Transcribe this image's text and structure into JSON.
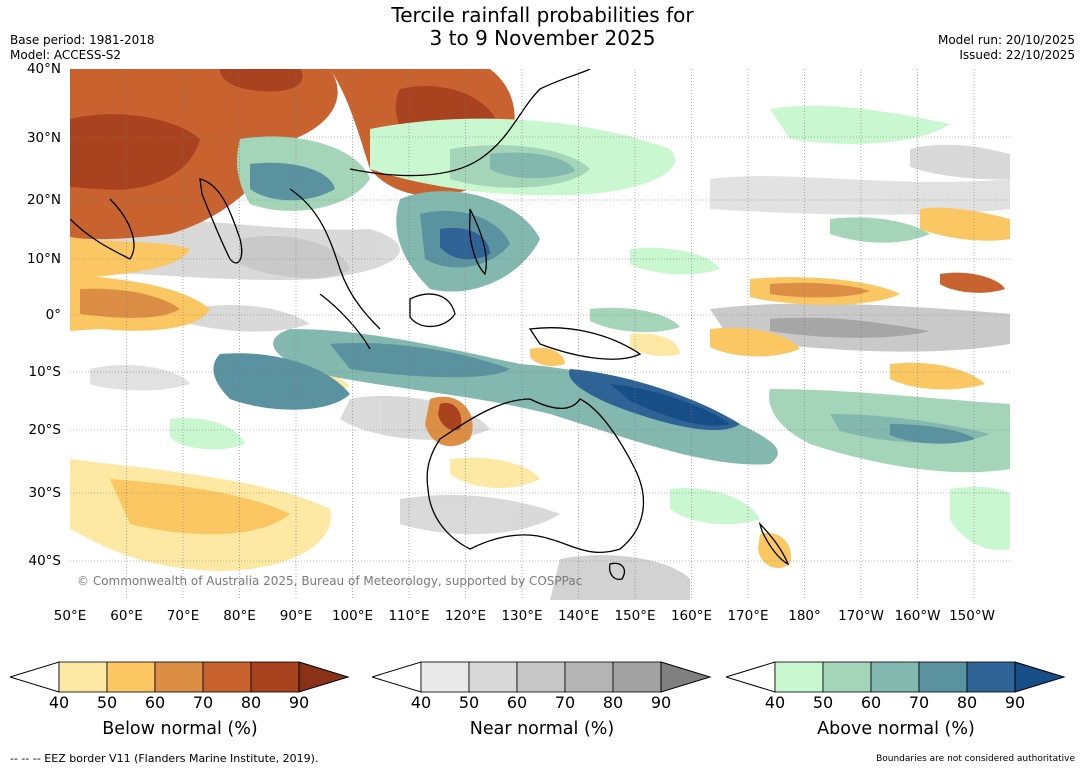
{
  "title": {
    "line1": "Tercile rainfall probabilities for",
    "line2": "3 to 9 November 2025"
  },
  "meta": {
    "base_period": "Base period: 1981-2018",
    "model": "Model: ACCESS-S2",
    "model_run": "Model run: 20/10/2025",
    "issued": "Issued: 22/10/2025"
  },
  "map": {
    "lat_labels": [
      "40°N",
      "30°N",
      "20°N",
      "10°N",
      "0°",
      "10°S",
      "20°S",
      "30°S",
      "40°S"
    ],
    "lon_labels": [
      "50°E",
      "60°E",
      "70°E",
      "80°E",
      "90°E",
      "100°E",
      "110°E",
      "120°E",
      "130°E",
      "140°E",
      "150°E",
      "160°E",
      "170°E",
      "180°",
      "170°W",
      "160°W",
      "150°W"
    ],
    "copyright": "© Commonwealth of Australia 2025, Bureau of Meteorology, supported by COSPPac"
  },
  "colorbars": [
    {
      "title": "Below normal (%)",
      "ticks": [
        "40",
        "50",
        "60",
        "70",
        "80",
        "90"
      ],
      "colors": [
        "#fde9a4",
        "#fbc763",
        "#dd8e45",
        "#c8632f",
        "#a9431f"
      ],
      "over_color": "#8a3217"
    },
    {
      "title": "Near normal (%)",
      "ticks": [
        "40",
        "50",
        "60",
        "70",
        "80",
        "90"
      ],
      "colors": [
        "#e9e9e9",
        "#d8d8d8",
        "#c7c7c7",
        "#b4b4b4",
        "#a2a2a2"
      ],
      "over_color": "#808080"
    },
    {
      "title": "Above normal (%)",
      "ticks": [
        "40",
        "50",
        "60",
        "70",
        "80",
        "90"
      ],
      "colors": [
        "#c9f7cf",
        "#a4d5b9",
        "#83b8ae",
        "#5a92a0",
        "#2f6395"
      ],
      "over_color": "#184e88"
    }
  ],
  "footer": {
    "eez": "--  --  -- EEZ border V11 (Flanders Marine Institute, 2019).",
    "disclaimer": "Boundaries are not considered authoritative"
  }
}
